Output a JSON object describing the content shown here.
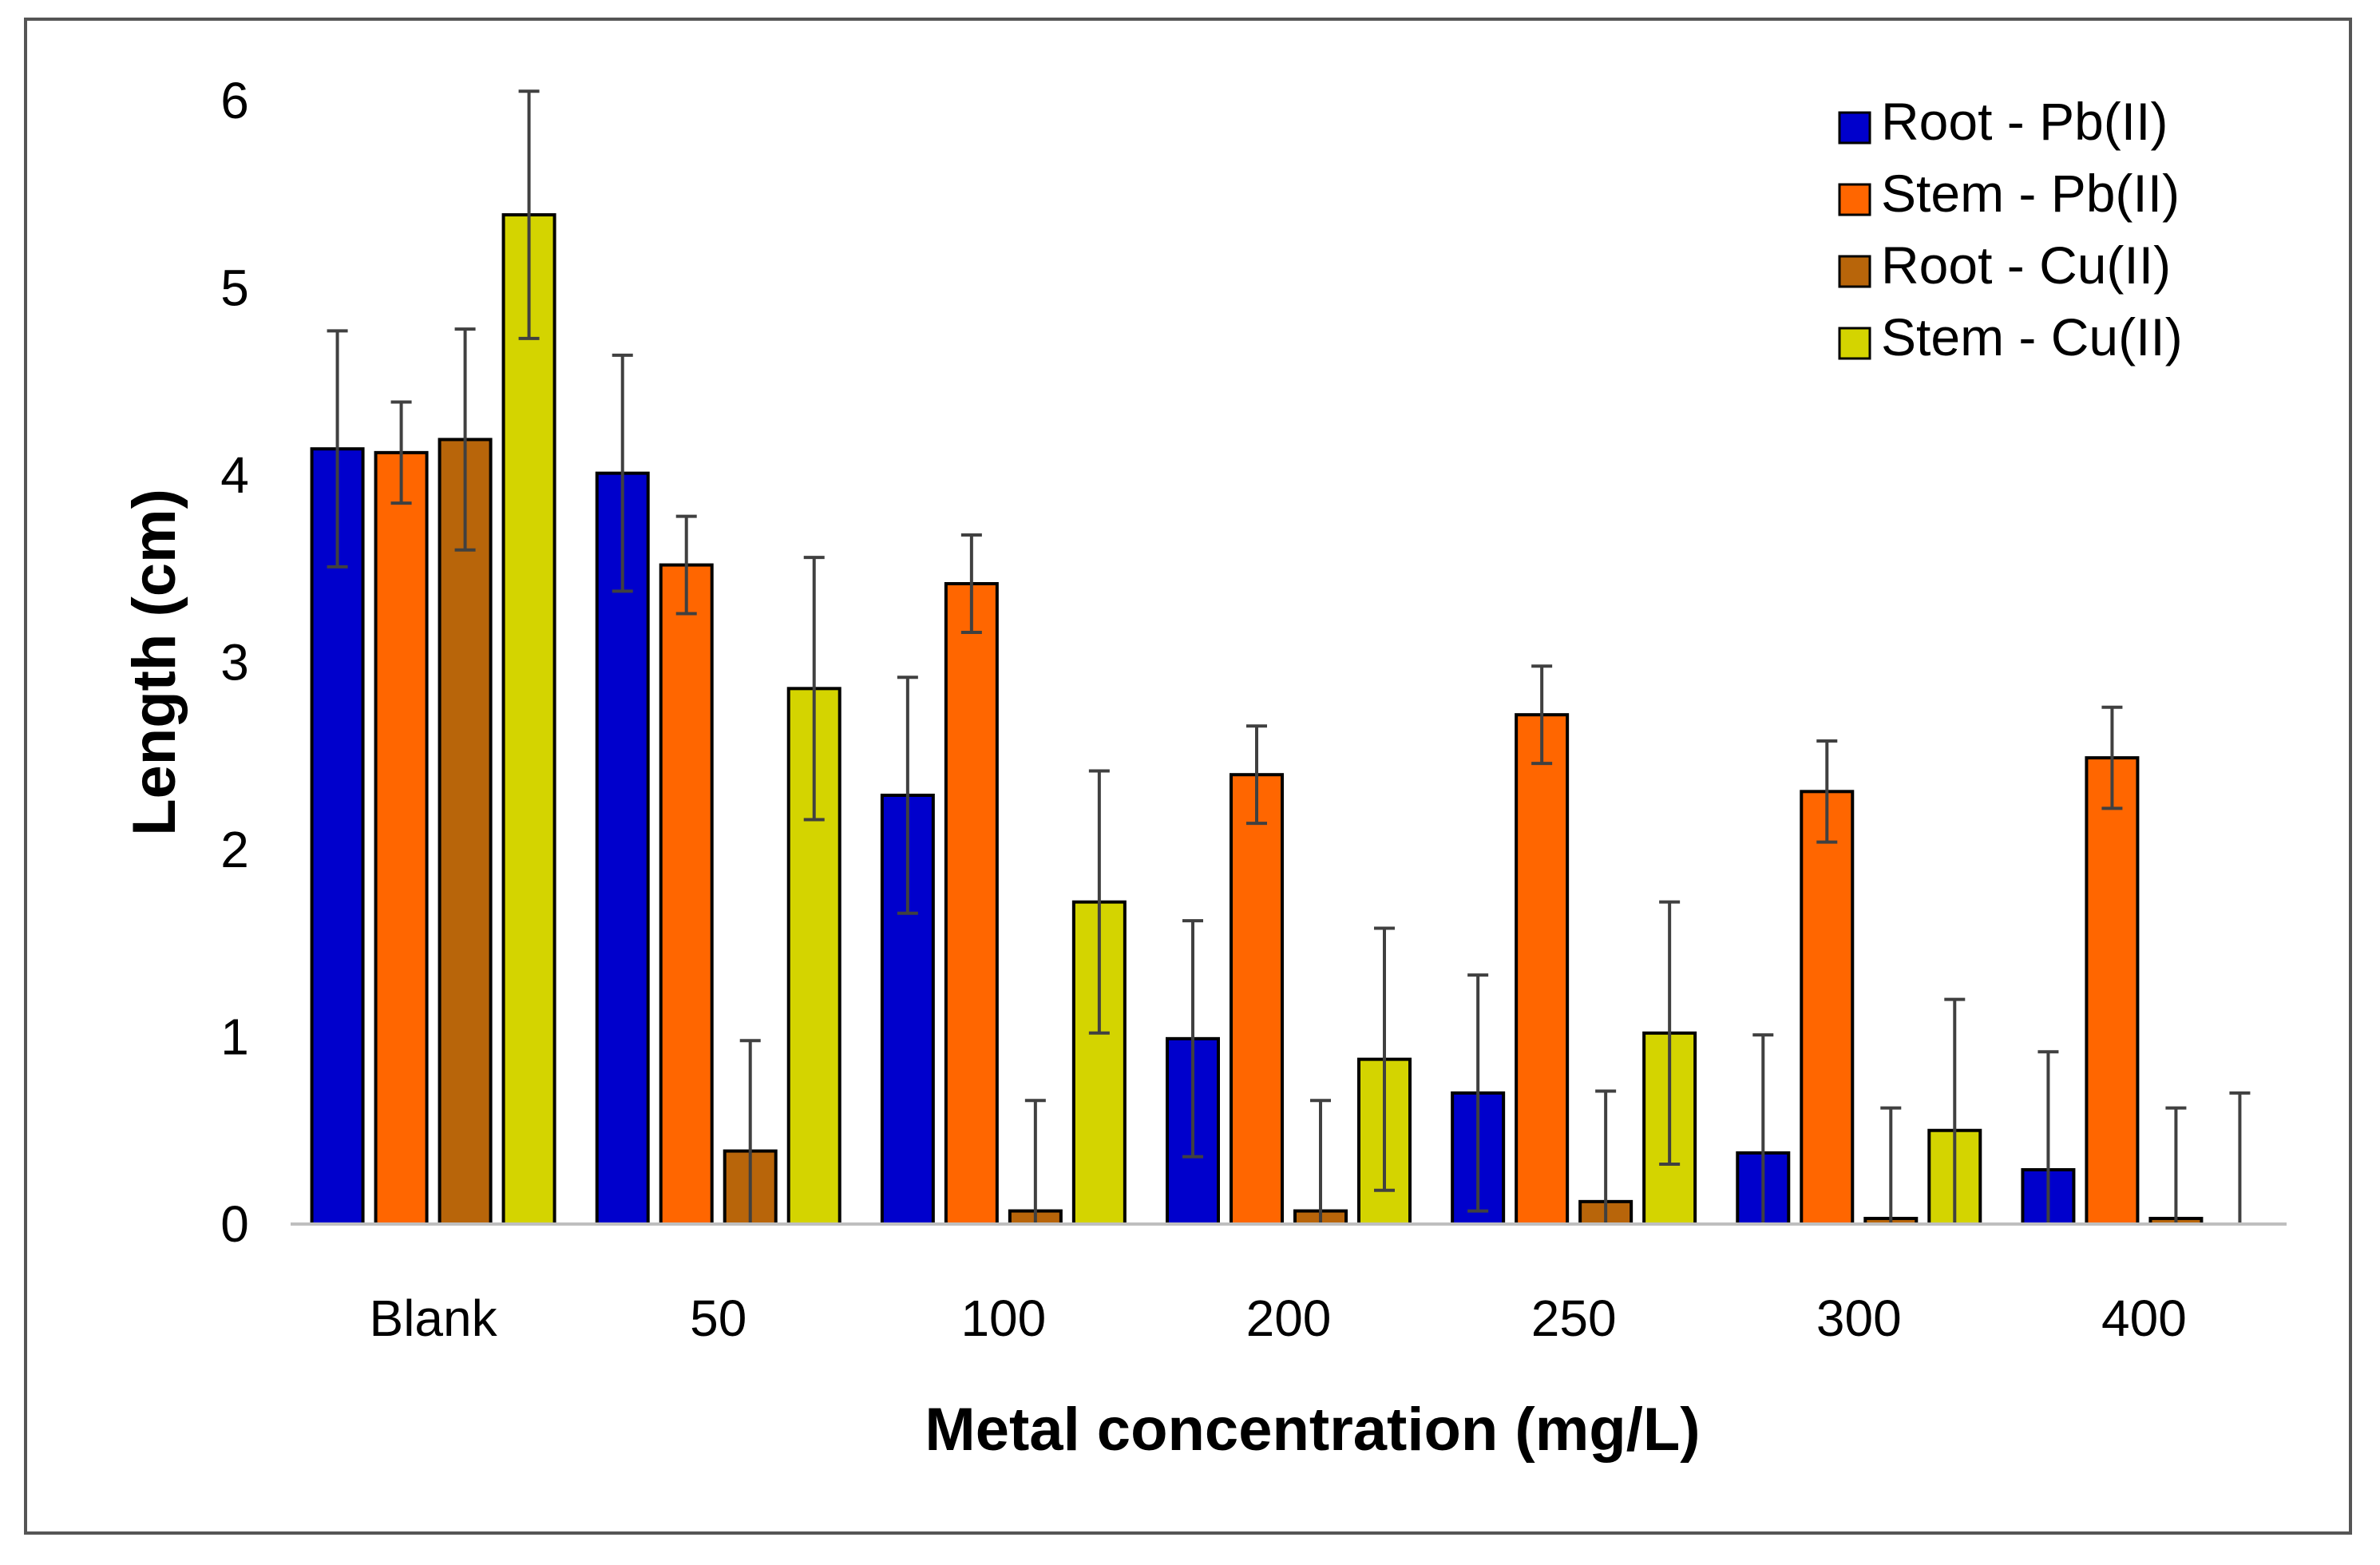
{
  "chart_data": {
    "type": "bar",
    "title": "",
    "xlabel": "Metal concentration (mg/L)",
    "ylabel": "Length (cm)",
    "ylim": [
      0,
      6
    ],
    "yticks": [
      "0",
      "1",
      "2",
      "3",
      "4",
      "5",
      "6"
    ],
    "grid": false,
    "legend_position": "top-right",
    "categories": [
      "Blank",
      "50",
      "100",
      "200",
      "250",
      "300",
      "400"
    ],
    "series": [
      {
        "name": "Root - Pb(II)",
        "color": "#0000cc",
        "values": [
          4.14,
          4.01,
          2.29,
          0.99,
          0.7,
          0.38,
          0.29
        ],
        "errors": [
          0.63,
          0.63,
          0.63,
          0.63,
          0.63,
          0.63,
          0.63
        ]
      },
      {
        "name": "Stem - Pb(II)",
        "color": "#ff6600",
        "values": [
          4.12,
          3.52,
          3.42,
          2.4,
          2.72,
          2.31,
          2.49
        ],
        "errors": [
          0.27,
          0.26,
          0.26,
          0.26,
          0.26,
          0.27,
          0.27
        ]
      },
      {
        "name": "Root - Cu(II)",
        "color": "#b8650a",
        "values": [
          4.19,
          0.39,
          0.07,
          0.07,
          0.12,
          0.03,
          0.03
        ],
        "errors": [
          0.59,
          0.59,
          0.59,
          0.59,
          0.59,
          0.59,
          0.59
        ]
      },
      {
        "name": "Stem - Cu(II)",
        "color": "#d4d400",
        "values": [
          5.39,
          2.86,
          1.72,
          0.88,
          1.02,
          0.5,
          0.0
        ],
        "errors": [
          0.66,
          0.7,
          0.7,
          0.7,
          0.7,
          0.7,
          0.7
        ]
      }
    ]
  }
}
